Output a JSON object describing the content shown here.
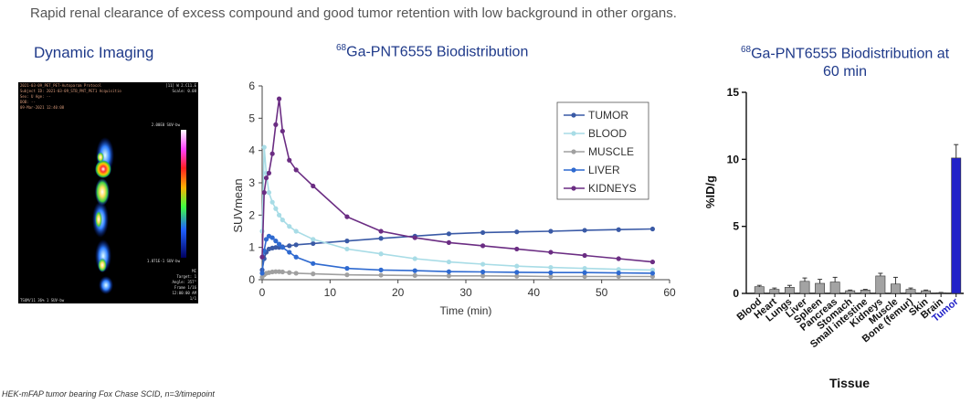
{
  "caption": "Rapid renal clearance of excess compound and good tumor retention with low background in other organs.",
  "dynamic_imaging": {
    "title": "Dynamic Imaging",
    "scale_max": "2.00E0 SUV-bw",
    "scale_min": "1.871E-1 SUV-bw",
    "header_lines": [
      "2021-03-09_PET_PET-Autoparam Protocol",
      "Subject ID: 2021-03-09_STB_PNT_PET1 Acquisitio",
      "Sex: U  Age: --",
      "DOB: --",
      "09-Mar-2021 12:40:08"
    ],
    "right_header": [
      "[11] W 2.C11.E",
      "Scale: 0.08"
    ],
    "right_info": [
      "MI",
      "Target: 1",
      "Angle: 357°",
      "Frame 1/16",
      "12:00:00 AM",
      "1/1"
    ],
    "bottom_left": "TSUM/11 36% 1 SUV-bw"
  },
  "footnote": "HEK-mFAP tumor bearing Fox Chase SCID, n=3/timepoint",
  "line_chart": {
    "title_sup": "68",
    "title_main": "Ga-PNT6555 Biodistribution"
  },
  "bar_chart": {
    "title_sup": "68",
    "title_line1": "Ga-PNT6555 Biodistribution at",
    "title_line2": "60 min"
  },
  "colors": {
    "tumor": "#3a5aa6",
    "blood": "#a8dce6",
    "muscle": "#a0a0a0",
    "liver": "#2f6ad0",
    "kidneys": "#6b2d83",
    "bar_gray": "#a3a3a3",
    "bar_tumor": "#2222c8",
    "title_blue": "#1f3a8a"
  },
  "chart_data": [
    {
      "type": "line",
      "title": "68Ga-PNT6555 Biodistribution",
      "xlabel": "Time (min)",
      "ylabel": "SUVmean",
      "xlim": [
        0,
        60
      ],
      "ylim": [
        0,
        6
      ],
      "xticks": [
        0,
        10,
        20,
        30,
        40,
        50,
        60
      ],
      "yticks": [
        0,
        1,
        2,
        3,
        4,
        5,
        6
      ],
      "legend_position": "top-right",
      "series": [
        {
          "name": "TUMOR",
          "color": "#3a5aa6",
          "x": [
            0,
            0.3,
            0.6,
            1,
            1.5,
            2,
            2.5,
            3,
            4,
            5,
            7.5,
            12.5,
            17.5,
            22.5,
            27.5,
            32.5,
            37.5,
            42.5,
            47.5,
            52.5,
            57.5
          ],
          "y": [
            0.3,
            0.65,
            0.85,
            0.95,
            0.98,
            1.0,
            1.0,
            1.02,
            1.05,
            1.08,
            1.12,
            1.2,
            1.28,
            1.35,
            1.42,
            1.46,
            1.48,
            1.5,
            1.53,
            1.55,
            1.57
          ]
        },
        {
          "name": "BLOOD",
          "color": "#a8dce6",
          "x": [
            0,
            0.3,
            0.6,
            1,
            1.5,
            2,
            2.5,
            3,
            4,
            5,
            7.5,
            12.5,
            17.5,
            22.5,
            27.5,
            32.5,
            37.5,
            42.5,
            47.5,
            52.5,
            57.5
          ],
          "y": [
            1.5,
            4.1,
            3.3,
            2.7,
            2.4,
            2.2,
            2.0,
            1.85,
            1.65,
            1.5,
            1.25,
            0.95,
            0.8,
            0.65,
            0.55,
            0.48,
            0.42,
            0.38,
            0.35,
            0.32,
            0.3
          ]
        },
        {
          "name": "MUSCLE",
          "color": "#a0a0a0",
          "x": [
            0,
            0.3,
            0.6,
            1,
            1.5,
            2,
            2.5,
            3,
            4,
            5,
            7.5,
            12.5,
            17.5,
            22.5,
            27.5,
            32.5,
            37.5,
            42.5,
            47.5,
            52.5,
            57.5
          ],
          "y": [
            0.08,
            0.15,
            0.2,
            0.22,
            0.24,
            0.25,
            0.25,
            0.24,
            0.22,
            0.2,
            0.18,
            0.15,
            0.14,
            0.13,
            0.12,
            0.12,
            0.11,
            0.1,
            0.1,
            0.1,
            0.1
          ]
        },
        {
          "name": "LIVER",
          "color": "#2f6ad0",
          "x": [
            0,
            0.3,
            0.6,
            1,
            1.5,
            2,
            2.5,
            3,
            4,
            5,
            7.5,
            12.5,
            17.5,
            22.5,
            27.5,
            32.5,
            37.5,
            42.5,
            47.5,
            52.5,
            57.5
          ],
          "y": [
            0.2,
            0.9,
            1.25,
            1.35,
            1.3,
            1.2,
            1.1,
            1.0,
            0.85,
            0.7,
            0.5,
            0.35,
            0.3,
            0.28,
            0.25,
            0.24,
            0.23,
            0.22,
            0.22,
            0.21,
            0.2
          ]
        },
        {
          "name": "KIDNEYS",
          "color": "#6b2d83",
          "x": [
            0,
            0.3,
            0.6,
            1,
            1.5,
            2,
            2.5,
            3,
            4,
            5,
            7.5,
            12.5,
            17.5,
            22.5,
            27.5,
            32.5,
            37.5,
            42.5,
            47.5,
            52.5,
            57.5
          ],
          "y": [
            0.7,
            2.7,
            3.15,
            3.3,
            3.9,
            4.8,
            5.6,
            4.6,
            3.7,
            3.4,
            2.9,
            1.95,
            1.5,
            1.3,
            1.15,
            1.05,
            0.95,
            0.85,
            0.75,
            0.65,
            0.55
          ]
        }
      ]
    },
    {
      "type": "bar",
      "title": "68Ga-PNT6555 Biodistribution at 60 min",
      "xlabel": "Tissue",
      "ylabel": "%ID/g",
      "ylim": [
        0,
        15
      ],
      "yticks": [
        0,
        5,
        10,
        15
      ],
      "categories": [
        "Blood",
        "Heart",
        "Lungs",
        "Liver",
        "Spleen",
        "Pancreas",
        "Stomach",
        "Small intestine",
        "Kidneys",
        "Muscle",
        "Bone (femur)",
        "Skin",
        "Brain",
        "Tumor"
      ],
      "values": [
        0.5,
        0.3,
        0.45,
        0.9,
        0.75,
        0.85,
        0.2,
        0.25,
        1.3,
        0.7,
        0.3,
        0.2,
        0.05,
        10.1
      ],
      "errors": [
        0.1,
        0.1,
        0.15,
        0.25,
        0.3,
        0.35,
        0.05,
        0.05,
        0.2,
        0.5,
        0.1,
        0.05,
        0.02,
        1.0
      ],
      "highlight": "Tumor"
    }
  ]
}
